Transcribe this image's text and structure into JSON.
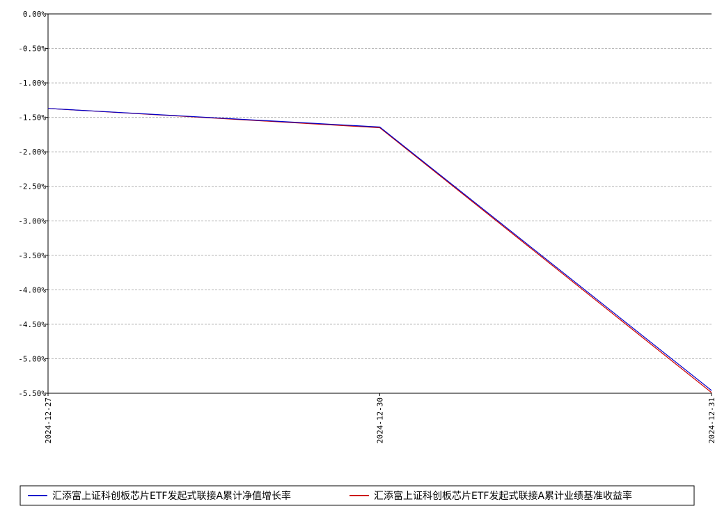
{
  "chart_data": {
    "type": "line",
    "x": [
      "2024-12-27",
      "2024-12-30",
      "2024-12-31"
    ],
    "series": [
      {
        "name": "汇添富上证科创板芯片ETF发起式联接A累计净值增长率",
        "color": "#0000cc",
        "values": [
          -1.37,
          -1.64,
          -5.46
        ]
      },
      {
        "name": "汇添富上证科创板芯片ETF发起式联接A累计业绩基准收益率",
        "color": "#cc0000",
        "values": [
          -1.37,
          -1.65,
          -5.49
        ]
      }
    ],
    "y_tick_labels": [
      "0.00%",
      "-0.50%",
      "-1.00%",
      "-1.50%",
      "-2.00%",
      "-2.50%",
      "-3.00%",
      "-3.50%",
      "-4.00%",
      "-4.50%",
      "-5.00%",
      "-5.50%"
    ],
    "ylim": [
      -5.5,
      0
    ],
    "y_unit": "%",
    "grid": true,
    "legend_position": "bottom"
  }
}
